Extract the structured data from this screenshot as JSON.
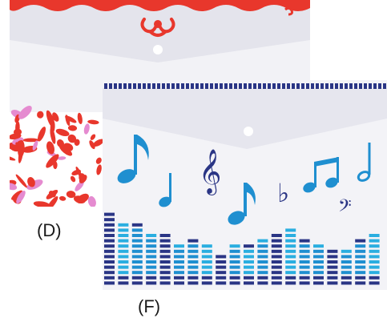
{
  "labels": {
    "d": "(D)",
    "f": "(F)"
  },
  "colors": {
    "d_accent": "#e8372c",
    "d_pink": "#e58bd0",
    "d_flap": "#ececf3",
    "d_body": "#f2f2f6",
    "f_navy": "#2a3585",
    "f_blue": "#1f8fd0",
    "f_light": "#2aaee0",
    "f_body": "#f3f3f7",
    "f_flap": "#e6e6ee"
  },
  "equalizer_heights": [
    14,
    12,
    12,
    10,
    10,
    8,
    9,
    8,
    6,
    8,
    8,
    9,
    10,
    11,
    9,
    8,
    7,
    7,
    9,
    10
  ]
}
